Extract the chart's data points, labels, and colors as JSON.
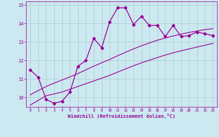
{
  "xlabel": "Windchill (Refroidissement éolien,°C)",
  "bg_color": "#cce8f0",
  "line_color": "#990099",
  "grid_color": "#aacccc",
  "x_data": [
    0,
    1,
    2,
    3,
    4,
    5,
    6,
    7,
    8,
    9,
    10,
    11,
    12,
    13,
    14,
    15,
    16,
    17,
    18,
    19,
    20,
    21,
    22,
    23
  ],
  "y_main": [
    11.5,
    11.1,
    9.9,
    9.7,
    9.8,
    10.3,
    11.7,
    12.0,
    13.2,
    12.7,
    14.1,
    14.85,
    14.85,
    13.95,
    14.4,
    13.9,
    13.9,
    13.3,
    13.9,
    13.3,
    13.35,
    13.55,
    13.45,
    13.35
  ],
  "y_lower": [
    9.6,
    9.85,
    10.1,
    10.2,
    10.3,
    10.45,
    10.6,
    10.75,
    10.9,
    11.05,
    11.2,
    11.38,
    11.55,
    11.72,
    11.88,
    12.02,
    12.16,
    12.3,
    12.42,
    12.53,
    12.63,
    12.73,
    12.83,
    12.93
  ],
  "y_upper": [
    10.15,
    10.38,
    10.6,
    10.78,
    10.95,
    11.12,
    11.3,
    11.5,
    11.7,
    11.88,
    12.06,
    12.26,
    12.45,
    12.63,
    12.8,
    12.95,
    13.1,
    13.22,
    13.33,
    13.43,
    13.52,
    13.6,
    13.67,
    13.73
  ],
  "xlim": [
    -0.5,
    23.5
  ],
  "ylim": [
    9.5,
    15.2
  ],
  "yticks": [
    10,
    11,
    12,
    13,
    14,
    15
  ],
  "xticks": [
    0,
    1,
    2,
    3,
    4,
    5,
    6,
    7,
    8,
    9,
    10,
    11,
    12,
    13,
    14,
    15,
    16,
    17,
    18,
    19,
    20,
    21,
    22,
    23
  ]
}
